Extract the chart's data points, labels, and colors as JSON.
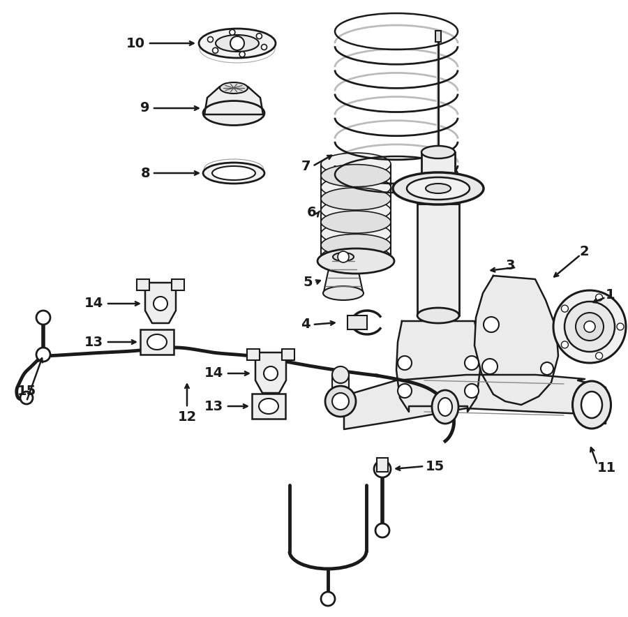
{
  "bg_color": "#ffffff",
  "line_color": "#1a1a1a",
  "fig_width": 9.0,
  "fig_height": 8.84,
  "dpi": 100,
  "xlim": [
    0,
    900
  ],
  "ylim": [
    0,
    884
  ]
}
